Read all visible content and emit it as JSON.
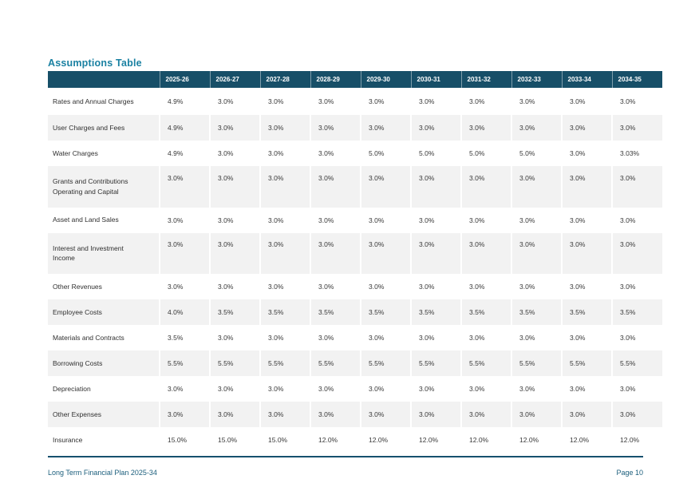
{
  "title": "Assumptions Table",
  "colors": {
    "header_bg": "#174f68",
    "title_text": "#1a81a2",
    "footer_text": "#1b5e7c",
    "row_band": "#f2f2f2",
    "divider": "#16506e"
  },
  "table": {
    "columns": [
      "2025-26",
      "2026-27",
      "2027-28",
      "2028-29",
      "2029-30",
      "2030-31",
      "2031-32",
      "2032-33",
      "2033-34",
      "2034-35"
    ],
    "rows": [
      {
        "label": "Rates and Annual Charges",
        "values": [
          "4.9%",
          "3.0%",
          "3.0%",
          "3.0%",
          "3.0%",
          "3.0%",
          "3.0%",
          "3.0%",
          "3.0%",
          "3.0%"
        ]
      },
      {
        "label": "User Charges and Fees",
        "values": [
          "4.9%",
          "3.0%",
          "3.0%",
          "3.0%",
          "3.0%",
          "3.0%",
          "3.0%",
          "3.0%",
          "3.0%",
          "3.0%"
        ]
      },
      {
        "label": "Water Charges",
        "values": [
          "4.9%",
          "3.0%",
          "3.0%",
          "3.0%",
          "5.0%",
          "5.0%",
          "5.0%",
          "5.0%",
          "3.0%",
          "3.03%"
        ]
      },
      {
        "label": "Grants and Contributions Operating and Capital",
        "values": [
          "3.0%",
          "3.0%",
          "3.0%",
          "3.0%",
          "3.0%",
          "3.0%",
          "3.0%",
          "3.0%",
          "3.0%",
          "3.0%"
        ]
      },
      {
        "label": "Asset and Land Sales",
        "values": [
          "3.0%",
          "3.0%",
          "3.0%",
          "3.0%",
          "3.0%",
          "3.0%",
          "3.0%",
          "3.0%",
          "3.0%",
          "3.0%"
        ]
      },
      {
        "label": "Interest and Investment Income",
        "values": [
          "3.0%",
          "3.0%",
          "3.0%",
          "3.0%",
          "3.0%",
          "3.0%",
          "3.0%",
          "3.0%",
          "3.0%",
          "3.0%"
        ]
      },
      {
        "label": "Other Revenues",
        "values": [
          "3.0%",
          "3.0%",
          "3.0%",
          "3.0%",
          "3.0%",
          "3.0%",
          "3.0%",
          "3.0%",
          "3.0%",
          "3.0%"
        ]
      },
      {
        "label": "Employee Costs",
        "values": [
          "4.0%",
          "3.5%",
          "3.5%",
          "3.5%",
          "3.5%",
          "3.5%",
          "3.5%",
          "3.5%",
          "3.5%",
          "3.5%"
        ]
      },
      {
        "label": "Materials and Contracts",
        "values": [
          "3.5%",
          "3.0%",
          "3.0%",
          "3.0%",
          "3.0%",
          "3.0%",
          "3.0%",
          "3.0%",
          "3.0%",
          "3.0%"
        ]
      },
      {
        "label": "Borrowing Costs",
        "values": [
          "5.5%",
          "5.5%",
          "5.5%",
          "5.5%",
          "5.5%",
          "5.5%",
          "5.5%",
          "5.5%",
          "5.5%",
          "5.5%"
        ]
      },
      {
        "label": "Depreciation",
        "values": [
          "3.0%",
          "3.0%",
          "3.0%",
          "3.0%",
          "3.0%",
          "3.0%",
          "3.0%",
          "3.0%",
          "3.0%",
          "3.0%"
        ]
      },
      {
        "label": "Other Expenses",
        "values": [
          "3.0%",
          "3.0%",
          "3.0%",
          "3.0%",
          "3.0%",
          "3.0%",
          "3.0%",
          "3.0%",
          "3.0%",
          "3.0%"
        ]
      },
      {
        "label": "Insurance",
        "values": [
          "15.0%",
          "15.0%",
          "15.0%",
          "12.0%",
          "12.0%",
          "12.0%",
          "12.0%",
          "12.0%",
          "12.0%",
          "12.0%"
        ]
      }
    ]
  },
  "footer": {
    "left": "Long Term Financial Plan 2025-34",
    "right": "Page 10"
  }
}
